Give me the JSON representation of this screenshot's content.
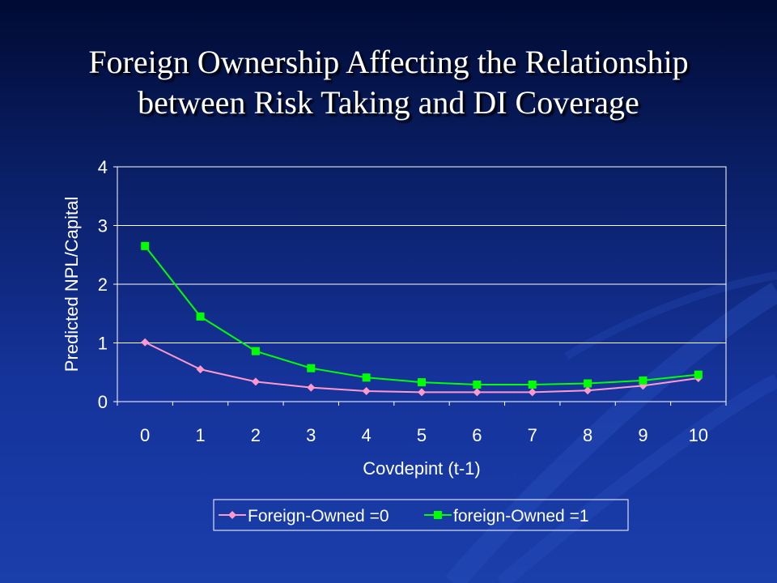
{
  "slide": {
    "title_line1": "Foreign Ownership Affecting the Relationship",
    "title_line2": "between Risk Taking and DI Coverage"
  },
  "chart_data": {
    "type": "line",
    "x": [
      0,
      1,
      2,
      3,
      4,
      5,
      6,
      7,
      8,
      9,
      10
    ],
    "categories": [
      "0",
      "1",
      "2",
      "3",
      "4",
      "5",
      "6",
      "7",
      "8",
      "9",
      "10"
    ],
    "series": [
      {
        "name": "Foreign-Owned =0",
        "values": [
          1.01,
          0.55,
          0.34,
          0.24,
          0.18,
          0.16,
          0.16,
          0.16,
          0.19,
          0.27,
          0.4
        ],
        "color": "#ff99cc",
        "marker": "diamond"
      },
      {
        "name": "foreign-Owned =1",
        "values": [
          2.65,
          1.45,
          0.86,
          0.57,
          0.41,
          0.33,
          0.29,
          0.29,
          0.31,
          0.36,
          0.46
        ],
        "color": "#00ff00",
        "marker": "square"
      }
    ],
    "title": "",
    "xlabel": "Covdepint (t-1)",
    "ylabel": "Predicted NPL/Capital",
    "ylim": [
      0,
      4
    ],
    "yticks": [
      "0",
      "1",
      "2",
      "3",
      "4"
    ],
    "grid": true,
    "legend": "bottom"
  }
}
